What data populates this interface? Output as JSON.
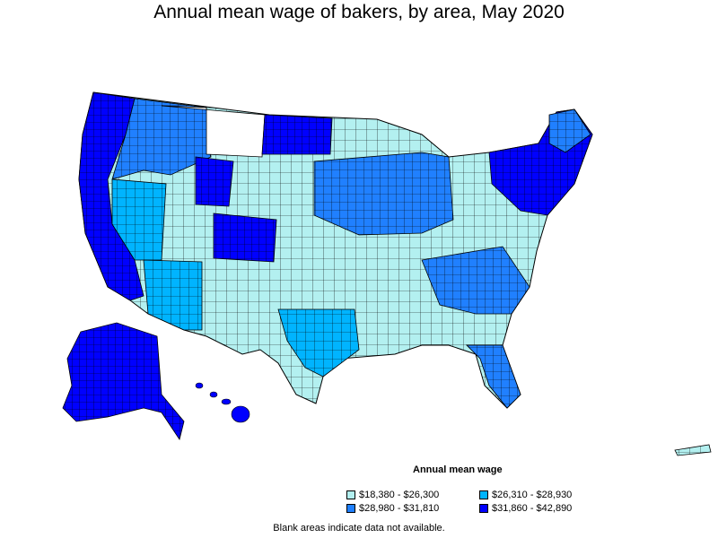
{
  "title": "Annual mean wage of bakers, by area, May 2020",
  "legend": {
    "title": "Annual mean wage",
    "items": [
      {
        "label": "$18,380 - $26,300",
        "color": "#b3f0f0"
      },
      {
        "label": "$26,310 - $28,930",
        "color": "#00b4ff"
      },
      {
        "label": "$28,980 - $31,810",
        "color": "#2080ff"
      },
      {
        "label": "$31,860 - $42,890",
        "color": "#0000ff"
      }
    ]
  },
  "note": "Blank areas indicate data not available.",
  "colors": {
    "border": "#000000",
    "blank": "#ffffff"
  }
}
